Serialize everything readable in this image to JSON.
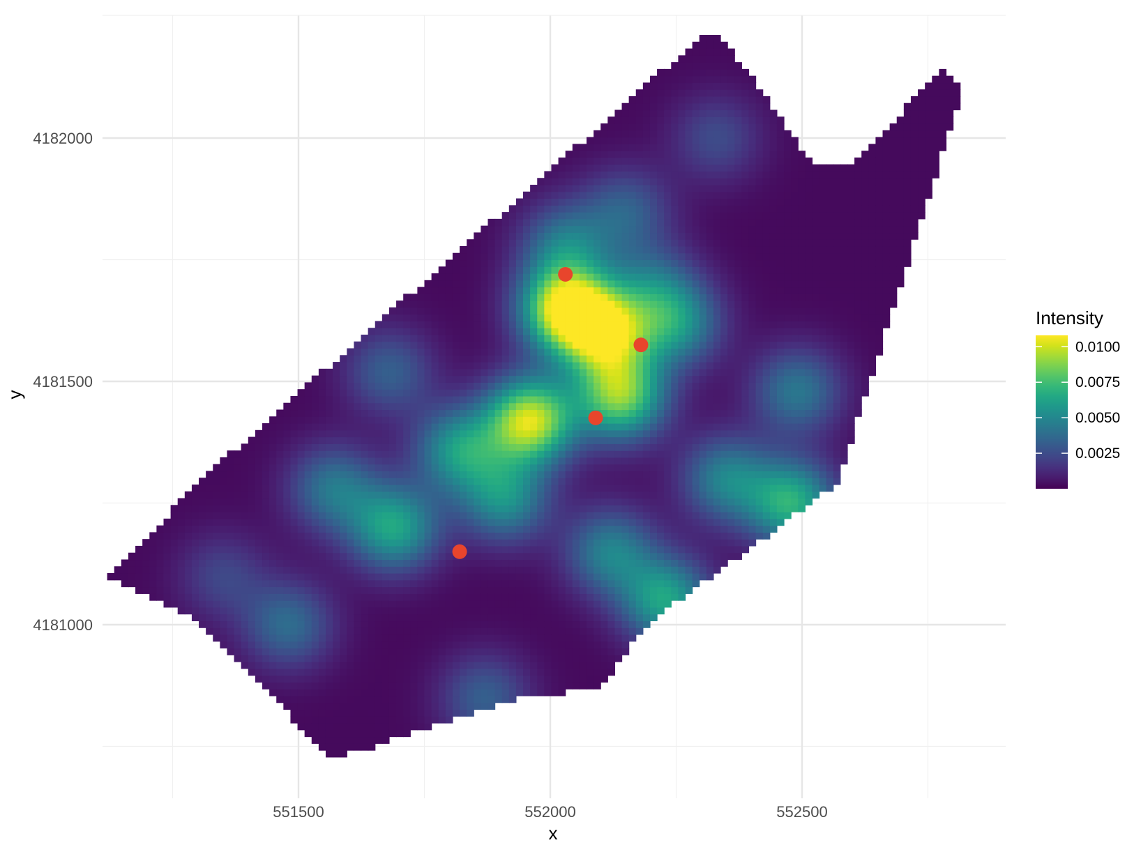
{
  "chart_data": {
    "type": "heatmap",
    "title": "",
    "xlabel": "x",
    "ylabel": "y",
    "xlim": [
      551050,
      552920
    ],
    "ylim": [
      4180700,
      4182250
    ],
    "x_major_ticks": [
      551500,
      552000,
      552500
    ],
    "x_tick_labels": [
      "551500",
      "552000",
      "552500"
    ],
    "x_minor_ticks": [
      551250,
      551750,
      552250,
      552750
    ],
    "y_major_ticks": [
      4181000,
      4181500,
      4182000
    ],
    "y_tick_labels": [
      "4181000",
      "4181500",
      "4182000"
    ],
    "y_minor_ticks": [
      4180750,
      4181250,
      4181750
    ],
    "grid": true,
    "colorscale": "viridis",
    "color_range": [
      0,
      0.0108
    ],
    "legend": {
      "title": "Intensity",
      "position": "right",
      "ticks": [
        0.0025,
        0.005,
        0.0075,
        0.01
      ],
      "tick_labels": [
        "0.0025",
        "0.0050",
        "0.0075",
        "0.0100"
      ]
    },
    "region_boundary": [
      [
        551560,
        4180730
      ],
      [
        551300,
        4181010
      ],
      [
        551120,
        4181100
      ],
      [
        551330,
        4181320
      ],
      [
        552300,
        4182210
      ],
      [
        552340,
        4182210
      ],
      [
        552520,
        4181950
      ],
      [
        552590,
        4181940
      ],
      [
        552780,
        4182140
      ],
      [
        552820,
        4182100
      ],
      [
        552570,
        4181290
      ],
      [
        552190,
        4181000
      ],
      [
        552100,
        4180870
      ],
      [
        551940,
        4180850
      ],
      [
        551620,
        4180740
      ]
    ],
    "intensity_peaks": [
      {
        "x": 552030,
        "y": 4181650,
        "value": 0.0103
      },
      {
        "x": 551960,
        "y": 4181420,
        "value": 0.0098
      },
      {
        "x": 552110,
        "y": 4181600,
        "value": 0.0086
      },
      {
        "x": 552140,
        "y": 4181470,
        "value": 0.0082
      },
      {
        "x": 551690,
        "y": 4181200,
        "value": 0.006
      },
      {
        "x": 552480,
        "y": 4181250,
        "value": 0.0065
      },
      {
        "x": 552230,
        "y": 4181050,
        "value": 0.006
      },
      {
        "x": 551820,
        "y": 4181360,
        "value": 0.0055
      },
      {
        "x": 551910,
        "y": 4181260,
        "value": 0.005
      },
      {
        "x": 552250,
        "y": 4181620,
        "value": 0.005
      },
      {
        "x": 552350,
        "y": 4181300,
        "value": 0.0045
      },
      {
        "x": 552120,
        "y": 4181150,
        "value": 0.0045
      },
      {
        "x": 551480,
        "y": 4181000,
        "value": 0.0035
      },
      {
        "x": 551570,
        "y": 4181280,
        "value": 0.004
      },
      {
        "x": 552030,
        "y": 4181780,
        "value": 0.004
      },
      {
        "x": 552150,
        "y": 4181850,
        "value": 0.003
      },
      {
        "x": 551680,
        "y": 4181520,
        "value": 0.003
      },
      {
        "x": 552490,
        "y": 4181480,
        "value": 0.004
      },
      {
        "x": 552200,
        "y": 4181700,
        "value": 0.003
      },
      {
        "x": 551870,
        "y": 4180850,
        "value": 0.003
      },
      {
        "x": 552330,
        "y": 4182000,
        "value": 0.0022
      },
      {
        "x": 551350,
        "y": 4181100,
        "value": 0.002
      }
    ],
    "points": {
      "color": "#e8452c",
      "x": [
        552030,
        552180,
        552090,
        551820
      ],
      "y": [
        4181720,
        4181575,
        4181425,
        4181150
      ]
    }
  }
}
